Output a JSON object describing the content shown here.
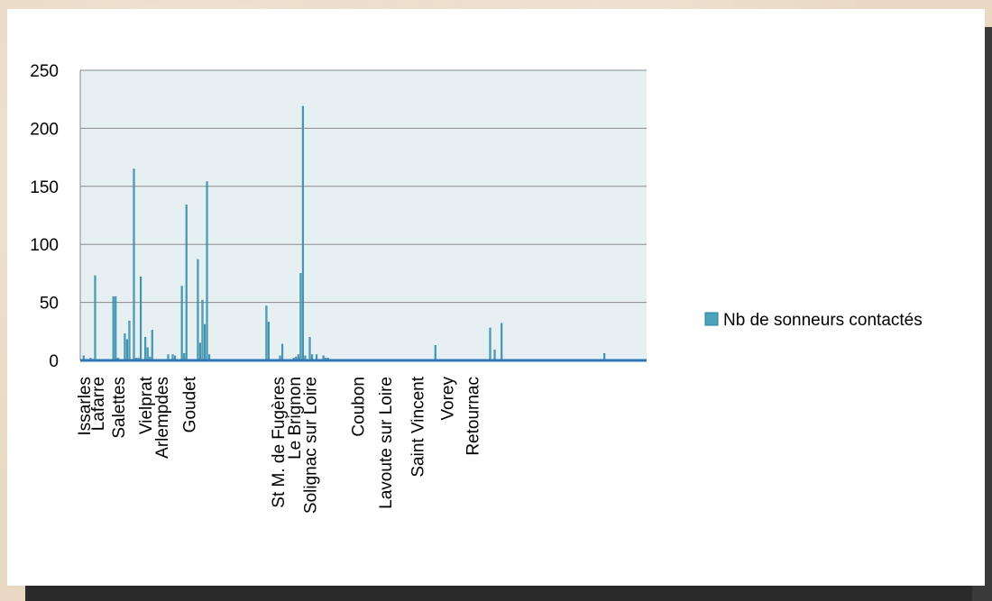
{
  "chart_data": {
    "type": "bar",
    "title": "",
    "xlabel": "",
    "ylabel": "",
    "ylim": [
      0,
      250
    ],
    "yticks": [
      0,
      50,
      100,
      150,
      200,
      250
    ],
    "grid": true,
    "legend_position": "right",
    "colors": {
      "bar": "#4aa3bc",
      "bar_edge": "#2f7f99",
      "plot_bg": "#e6eff2",
      "grid": "#8a8a8a",
      "axis": "#2e75b6"
    },
    "series": [
      {
        "name": "Nb de sonneurs contactés",
        "values": [
          0,
          4,
          0,
          1,
          2,
          1,
          73,
          0,
          0,
          0,
          0,
          0,
          0,
          0,
          55,
          55,
          2,
          0,
          0,
          23,
          18,
          34,
          0,
          165,
          2,
          2,
          72,
          0,
          20,
          11,
          3,
          26,
          0,
          0,
          0,
          0,
          0,
          0,
          5,
          0,
          5,
          4,
          0,
          0,
          64,
          6,
          134,
          0,
          0,
          1,
          0,
          87,
          15,
          52,
          31,
          154,
          5,
          0,
          0,
          0,
          0,
          0,
          0,
          0,
          0,
          0,
          0,
          0,
          0,
          0,
          0,
          0,
          0,
          0,
          0,
          0,
          0,
          0,
          0,
          0,
          0,
          47,
          33,
          0,
          0,
          0,
          0,
          4,
          14,
          0,
          0,
          0,
          0,
          2,
          3,
          5,
          75,
          219,
          4,
          0,
          20,
          5,
          0,
          5,
          0,
          0,
          4,
          2,
          2,
          1,
          0,
          0,
          0,
          0,
          0,
          0,
          0,
          0,
          0,
          0,
          0,
          0,
          0,
          0,
          0,
          0,
          0,
          0,
          0,
          0,
          0,
          0,
          0,
          0,
          0,
          0,
          0,
          0,
          0,
          0,
          0,
          0,
          0,
          0,
          0,
          0,
          0,
          0,
          0,
          0,
          0,
          0,
          0,
          0,
          0,
          13,
          0,
          0,
          0,
          0,
          0,
          0,
          0,
          0,
          0,
          0,
          0,
          0,
          0,
          0,
          0,
          0,
          0,
          0,
          0,
          0,
          0,
          0,
          0,
          28,
          0,
          9,
          0,
          0,
          32,
          0,
          0,
          0,
          0,
          0,
          0,
          0,
          0,
          0,
          0,
          0,
          0,
          0,
          0,
          0,
          0,
          0,
          0,
          0,
          0,
          0,
          0,
          0,
          0,
          0,
          0,
          0,
          0,
          0,
          0,
          0,
          0,
          0,
          0,
          0,
          0,
          0,
          0,
          0,
          0,
          0,
          0,
          0,
          0,
          6,
          0,
          0,
          0,
          0,
          0,
          0,
          0,
          0,
          0,
          0,
          0,
          0,
          0,
          0,
          0,
          0,
          0,
          0
        ]
      }
    ],
    "category_labels": [
      {
        "index": 1,
        "text": "Issarles"
      },
      {
        "index": 7,
        "text": "Lafarre"
      },
      {
        "index": 16,
        "text": "Salettes"
      },
      {
        "index": 28,
        "text": "Vielprat"
      },
      {
        "index": 35,
        "text": "Arlempdes"
      },
      {
        "index": 47,
        "text": "Goudet"
      },
      {
        "index": 86,
        "text": "St M. de Fugères"
      },
      {
        "index": 93,
        "text": "Le Brignon"
      },
      {
        "index": 100,
        "text": "Solignac sur Loire"
      },
      {
        "index": 121,
        "text": "Coubon"
      },
      {
        "index": 133,
        "text": "Lavoute sur Loire"
      },
      {
        "index": 147,
        "text": "Saint Vincent"
      },
      {
        "index": 160,
        "text": "Vorey"
      },
      {
        "index": 171,
        "text": "Retournac"
      }
    ]
  }
}
